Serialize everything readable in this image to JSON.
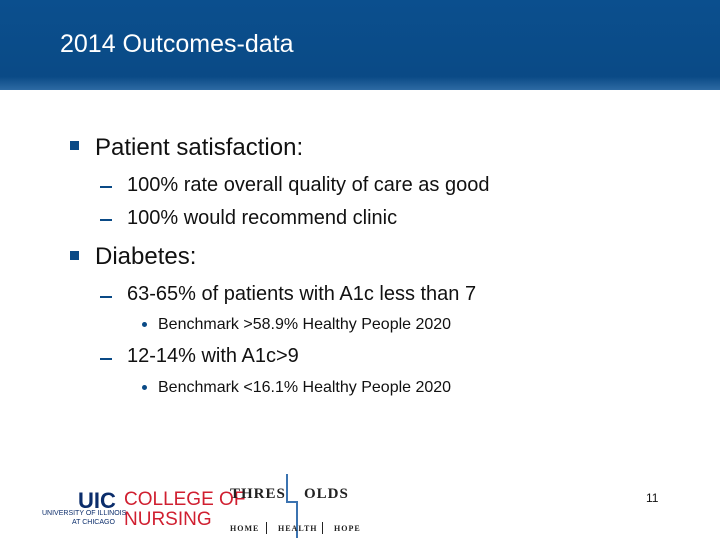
{
  "header": {
    "title": "2014 Outcomes-data"
  },
  "bullets": [
    {
      "text": "Patient satisfaction:",
      "items": [
        {
          "text": "100% rate overall quality of care as good"
        },
        {
          "text": "100% would recommend clinic"
        }
      ]
    },
    {
      "text": "Diabetes:",
      "items": [
        {
          "text": "63-65% of patients with A1c less than 7",
          "items": [
            "Benchmark >58.9% Healthy People 2020"
          ]
        },
        {
          "text": "12-14% with A1c>9",
          "items": [
            "Benchmark <16.1% Healthy People 2020"
          ]
        }
      ]
    }
  ],
  "footer": {
    "uic_logo": {
      "mark": "UIC",
      "college": "COLLEGE OF",
      "school": "NURSING",
      "university": "UNIVERSITY OF ILLINOIS",
      "city": "AT CHICAGO"
    },
    "thresholds_logo": {
      "left": "THRES",
      "right": "OLDS",
      "tagline": [
        "HOME",
        "HEALTH",
        "HOPE"
      ]
    },
    "page_number": "11"
  }
}
